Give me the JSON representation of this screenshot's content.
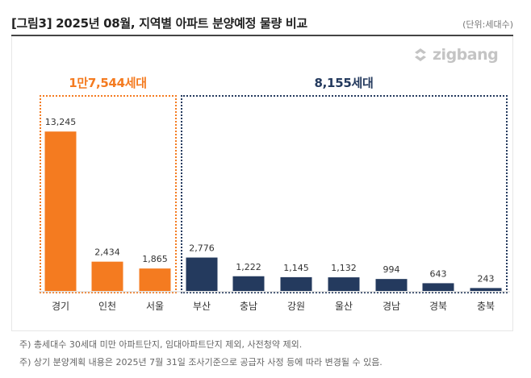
{
  "title": "[그림3] 2025년 08월, 지역별 아파트 분양예정 물량 비교",
  "unit": "(단위:세대수)",
  "logo": {
    "text": "zigbang",
    "icon": "zigbang-logo-icon"
  },
  "groups": [
    {
      "label": "1만7,544세대",
      "color": "#f47b20"
    },
    {
      "label": "8,155세대",
      "color": "#243a5e"
    }
  ],
  "notes": [
    "주) 총세대수 30세대 미만 아파트단지, 임대아파트단지 제외, 사전청약 제외.",
    "주) 상기 분양계획 내용은 2025년 7월 31일 조사기준으로 공급자 사정 등에 따라 변경될 수 있음."
  ],
  "chart_data": {
    "type": "bar",
    "title": "[그림3] 2025년 08월, 지역별 아파트 분양예정 물량 비교",
    "categories": [
      "경기",
      "인천",
      "서울",
      "부산",
      "충남",
      "강원",
      "울산",
      "경남",
      "경북",
      "충북"
    ],
    "values": [
      13245,
      2434,
      1865,
      2776,
      1222,
      1145,
      1132,
      994,
      643,
      243
    ],
    "value_labels": [
      "13,245",
      "2,434",
      "1,865",
      "2,776",
      "1,222",
      "1,145",
      "1,132",
      "994",
      "643",
      "243"
    ],
    "group_index": [
      0,
      0,
      0,
      1,
      1,
      1,
      1,
      1,
      1,
      1
    ],
    "ylim": [
      0,
      15000
    ],
    "xlabel": "",
    "ylabel": "",
    "grid": false,
    "legend": "none",
    "colors": {
      "group0": "#f47b20",
      "group1": "#243a5e",
      "axis": "#cfcfcf"
    }
  }
}
